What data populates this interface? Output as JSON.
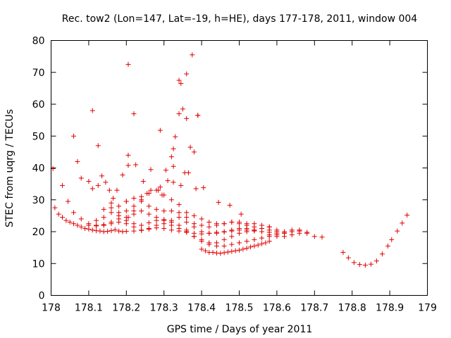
{
  "chart_data": {
    "type": "scatter",
    "title": "Rec. tow2 (Lon=147, Lat=-19, h=HE), days 177-178, 2011, window 004",
    "xlabel": "GPS time / Days of year 2011",
    "ylabel": "STEC from uqrg / TECUs",
    "xlim": [
      178,
      179
    ],
    "ylim": [
      0,
      80
    ],
    "x_ticks": [
      "178",
      "178.1",
      "178.2",
      "178.3",
      "178.4",
      "178.5",
      "178.6",
      "178.7",
      "178.8",
      "178.9",
      "179"
    ],
    "y_ticks": [
      "0",
      "10",
      "20",
      "30",
      "40",
      "50",
      "60",
      "70",
      "80"
    ],
    "grid": false,
    "legend": "none",
    "marker_color": "#e00000",
    "marker": "plus",
    "series": [
      {
        "x": [
          178.01,
          178.02,
          178.03,
          178.04,
          178.05,
          178.06,
          178.07,
          178.08,
          178.09,
          178.1,
          178.11,
          178.12,
          178.13,
          178.14,
          178.15,
          178.16,
          178.17,
          178.18,
          178.19,
          178.2,
          178.22,
          178.24,
          178.26,
          178.28,
          178.3,
          178.32,
          178.34,
          178.36,
          178.38,
          178.4,
          178.42,
          178.44,
          178.46,
          178.48,
          178.5,
          178.52,
          178.54,
          178.56,
          178.58,
          178.6,
          178.62
        ],
        "y": [
          27.5,
          25.5,
          24.5,
          23.5,
          23,
          22.5,
          22,
          21.5,
          21,
          20.8,
          20.5,
          20.3,
          20.2,
          20,
          20.1,
          20.3,
          20.6,
          20.2,
          20,
          20.1,
          20.2,
          20.4,
          20.8,
          21.2,
          21,
          20.5,
          20.2,
          19.8,
          19.5,
          19.3,
          19.5,
          19.8,
          19.9,
          20.2,
          20.5,
          20.5,
          20.2,
          20,
          19.8,
          19.5,
          19.6
        ]
      },
      {
        "x": [
          178.06,
          178.08,
          178.1,
          178.12,
          178.14,
          178.16,
          178.18,
          178.2,
          178.22,
          178.24,
          178.26,
          178.28,
          178.3,
          178.32,
          178.34,
          178.36,
          178.38,
          178.4,
          178.42,
          178.44,
          178.46,
          178.48,
          178.5,
          178.52,
          178.54,
          178.56,
          178.58,
          178.6,
          178.62,
          178.64,
          178.66,
          178.68,
          178.7,
          178.72
        ],
        "y": [
          26,
          24,
          22.5,
          22,
          22,
          22.5,
          23,
          22.5,
          21.5,
          20.5,
          21,
          22,
          22.5,
          22,
          21,
          20,
          18.5,
          17.5,
          16.5,
          16.5,
          17.5,
          18.5,
          19.5,
          20,
          20.5,
          21,
          21.5,
          20.5,
          20,
          20.5,
          20.5,
          19.5,
          18.5,
          18.3
        ]
      },
      {
        "x": [
          178.1,
          178.12,
          178.14,
          178.16,
          178.18,
          178.2,
          178.22,
          178.24,
          178.26,
          178.28,
          178.3,
          178.32,
          178.34,
          178.36,
          178.38,
          178.4,
          178.42,
          178.44,
          178.46,
          178.48,
          178.5,
          178.52,
          178.54,
          178.56,
          178.58,
          178.6,
          178.62,
          178.64,
          178.66,
          178.68
        ],
        "y": [
          22,
          21.8,
          22.2,
          23,
          24,
          23.5,
          22.5,
          22,
          22.8,
          23.5,
          23.8,
          23,
          22,
          20.5,
          18.5,
          17,
          16,
          15.5,
          15.5,
          16,
          16.5,
          17,
          17.5,
          18,
          18.5,
          19,
          19.5,
          20,
          20.2,
          19.8
        ]
      },
      {
        "x": [
          178.12,
          178.14,
          178.16,
          178.18,
          178.2,
          178.22,
          178.24,
          178.26,
          178.28,
          178.3,
          178.32,
          178.34,
          178.36,
          178.38,
          178.4,
          178.42,
          178.44,
          178.46,
          178.48,
          178.5,
          178.52,
          178.54,
          178.56,
          178.58,
          178.6,
          178.62,
          178.64,
          178.66
        ],
        "y": [
          23.5,
          24.5,
          26,
          25,
          24.5,
          25.5,
          26.5,
          25.5,
          24.5,
          23.5,
          23.5,
          24.5,
          23,
          21.5,
          20,
          19.5,
          19.5,
          20,
          20.5,
          21,
          21,
          20.5,
          20,
          19,
          18.5,
          18.5,
          19,
          19.5
        ]
      },
      {
        "x": [
          178.14,
          178.16,
          178.18,
          178.2,
          178.22,
          178.24,
          178.26,
          178.28,
          178.3,
          178.32,
          178.34,
          178.36,
          178.38,
          178.4,
          178.42,
          178.44,
          178.46,
          178.48,
          178.5,
          178.52,
          178.54,
          178.56,
          178.58,
          178.6
        ],
        "y": [
          27,
          27.5,
          26,
          26.5,
          28,
          29.5,
          28,
          27,
          26.5,
          26.5,
          26,
          24.5,
          22.5,
          22,
          21.5,
          22,
          22.5,
          23,
          22.5,
          22,
          21.5,
          21,
          20.5,
          20
        ]
      },
      {
        "x": [
          178.16,
          178.18,
          178.2,
          178.22,
          178.24,
          178.26,
          178.28,
          178.3,
          178.32,
          178.34,
          178.36,
          178.38,
          178.4,
          178.42,
          178.44,
          178.46,
          178.48,
          178.5,
          178.52,
          178.54,
          178.56,
          178.58
        ],
        "y": [
          29,
          28,
          29.5,
          30.5,
          31,
          32,
          33,
          31.5,
          30,
          28.5,
          26,
          25,
          24,
          23,
          22.5,
          22.5,
          23,
          23,
          22.5,
          22.5,
          22,
          21.5
        ]
      },
      {
        "x": [
          178.4,
          178.41,
          178.42,
          178.43,
          178.44,
          178.45,
          178.46,
          178.47,
          178.48,
          178.49,
          178.5,
          178.51,
          178.52,
          178.53,
          178.54,
          178.55,
          178.56,
          178.57,
          178.58
        ],
        "y": [
          14.5,
          14,
          13.5,
          13.5,
          13.3,
          13.2,
          13.4,
          13.6,
          13.8,
          14,
          14.2,
          14.5,
          14.8,
          15.2,
          15.5,
          15.8,
          16.2,
          16.5,
          17
        ]
      },
      {
        "x": [
          178.776,
          178.79,
          178.805,
          178.82,
          178.835,
          178.85,
          178.865,
          178.88,
          178.895,
          178.905,
          178.92,
          178.933,
          178.946
        ],
        "y": [
          13.5,
          11.8,
          10.3,
          9.7,
          9.5,
          9.8,
          10.8,
          13,
          15.5,
          17.5,
          20.2,
          22.7,
          25.2
        ]
      },
      {
        "x": [
          178.005,
          178.03,
          178.045,
          178.06,
          178.07,
          178.08,
          178.1,
          178.11,
          178.125,
          178.135,
          178.145,
          178.155,
          178.165,
          178.175,
          178.19,
          178.205,
          178.225,
          178.245,
          178.265,
          178.285,
          178.305,
          178.325,
          178.345,
          178.365,
          178.385,
          178.405,
          178.445,
          178.475,
          178.505
        ],
        "y": [
          39.8,
          34.5,
          29.5,
          50,
          42,
          36.8,
          35.8,
          33.5,
          34.5,
          37.5,
          35.5,
          33,
          30.5,
          33,
          37.8,
          40.8,
          41,
          35.8,
          39.5,
          33,
          39.3,
          35.5,
          34.5,
          38.5,
          33.5,
          33.8,
          29.2,
          28.3,
          25.5
        ]
      },
      {
        "x": [
          178.205,
          178.22,
          178.24,
          178.255,
          178.265,
          178.29,
          178.295,
          178.31,
          178.32,
          178.325,
          178.33,
          178.34,
          178.35,
          178.36,
          178.37,
          178.38,
          178.39,
          178.325,
          178.355,
          178.2
        ],
        "y": [
          24.5,
          26.5,
          30,
          32,
          33,
          34,
          31.5,
          36,
          43.5,
          46,
          49.8,
          57,
          58.5,
          55.5,
          46.5,
          45,
          56.5,
          40.5,
          38.5,
          29.5
        ]
      },
      {
        "x": [
          178.205,
          178.11,
          178.125,
          178.22,
          178.205,
          178.29,
          178.34,
          178.345,
          178.36,
          178.375,
          178.39
        ],
        "y": [
          72.5,
          58,
          47,
          57,
          44,
          51.8,
          67.5,
          66.5,
          69.5,
          75.5,
          56.5
        ]
      }
    ]
  }
}
